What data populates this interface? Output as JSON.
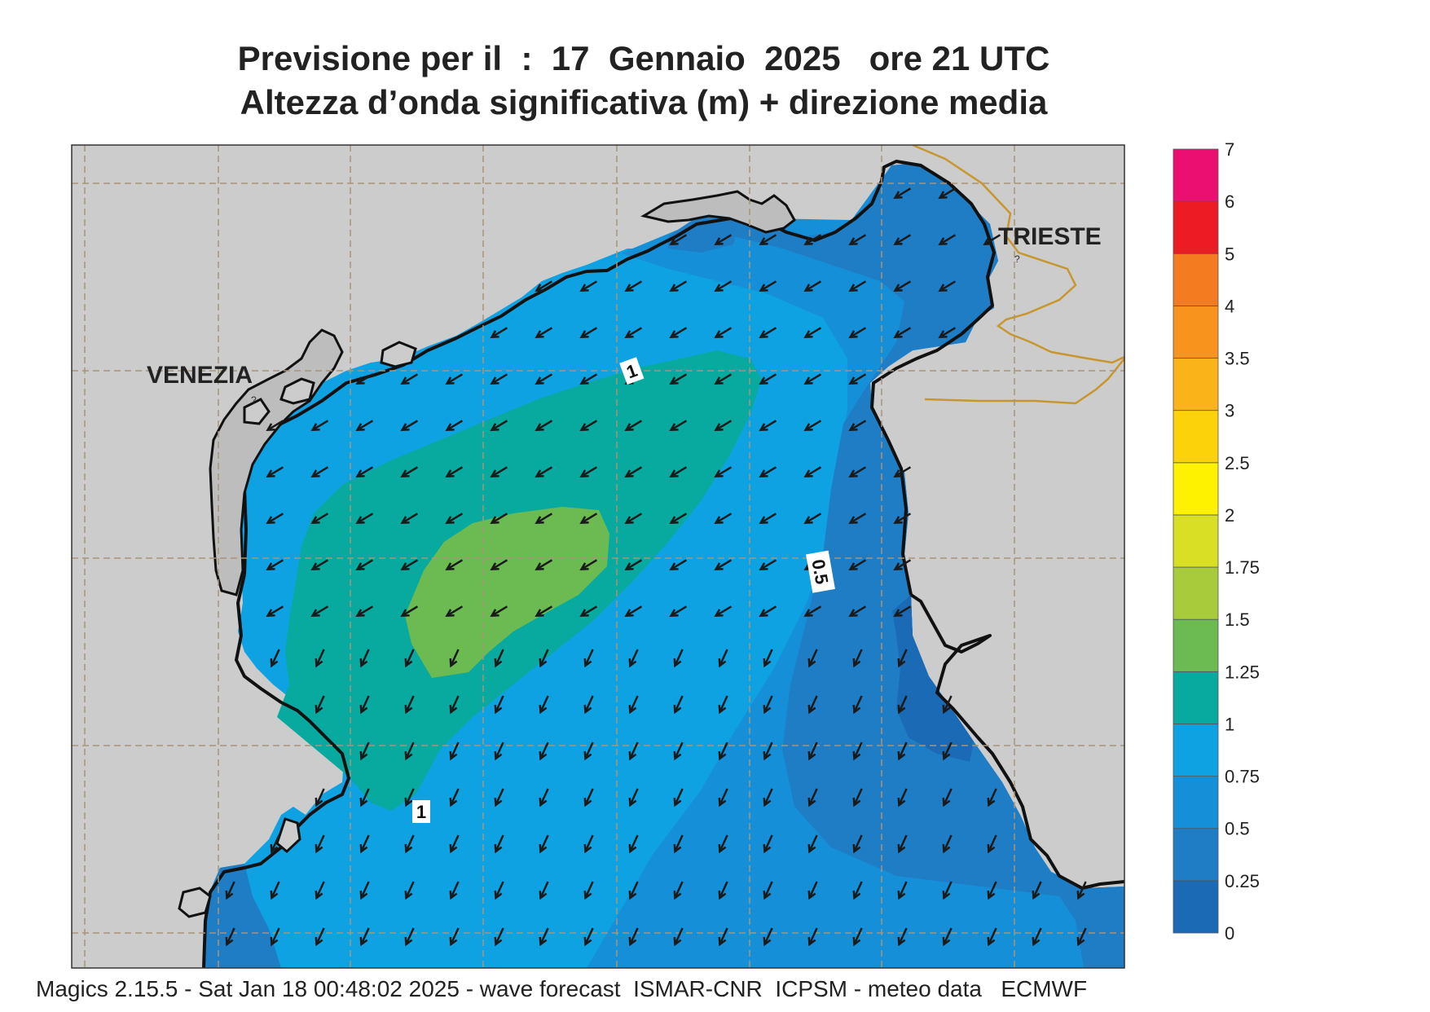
{
  "title_line1": "Previsione per il  :  17  Gennaio  2025   ore 21 UTC",
  "title_line2": "Altezza d’onda significativa (m) + direzione media",
  "footer": "Magics 2.15.5 - Sat Jan 18 00:48:02 2025 - wave forecast  ISMAR-CNR  ICPSM - meteo data   ECMWF",
  "cities": {
    "venezia": "VENEZIA",
    "trieste": "TRIESTE"
  },
  "contour_labels": {
    "top": "1",
    "bottom": "1",
    "right": "0.5"
  },
  "colorbar": {
    "ticks": [
      "0",
      "0.25",
      "0.5",
      "0.75",
      "1",
      "1.25",
      "1.5",
      "1.75",
      "2",
      "2.5",
      "3",
      "3.5",
      "4",
      "5",
      "6",
      "7"
    ],
    "colors": [
      "#1a6ab5",
      "#1f7dc6",
      "#1590d8",
      "#0ea2e2",
      "#08a99f",
      "#6cbb52",
      "#a8cb3c",
      "#d8df24",
      "#fff200",
      "#fcd20a",
      "#fbb31a",
      "#f8941d",
      "#f47b20",
      "#ed1c24",
      "#ec0f72"
    ]
  },
  "colors": {
    "land": "#cccccc",
    "lagoon": "#bdbdbd",
    "level_0_25": "#1a6ab5",
    "level_0_5": "#1f7dc6",
    "level_0_75": "#1590d8",
    "level_1": "#0ea2e2",
    "level_1_25": "#08a99f",
    "level_1_5": "#6cbb52",
    "coast": "#111111",
    "border": "#c8962f",
    "grid": "#a8947a",
    "arrow": "#1a1a1a"
  },
  "wave_direction": "south-west"
}
